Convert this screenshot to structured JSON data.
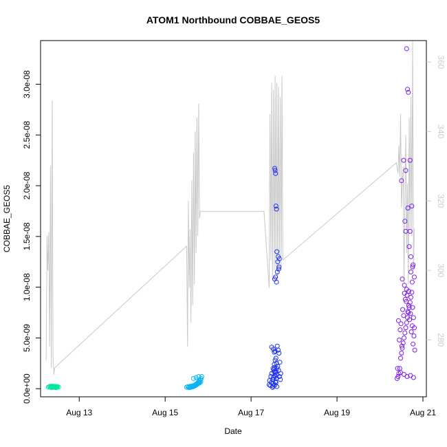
{
  "chart_data": {
    "type": "scatter",
    "title": "ATOM1 Northbound COBBAE_GEOS5",
    "xlabel": "Date",
    "ylabel": "COBBAE_GEOS5",
    "xlim": [
      12.1,
      21.08
    ],
    "ylim": [
      -8e-10,
      3.43e-08
    ],
    "y2lim": [
      263.6,
      366.2
    ],
    "grid": false,
    "legend": "none",
    "x_ticks": [
      {
        "value": 13,
        "label": "Aug 13"
      },
      {
        "value": 15,
        "label": "Aug 15"
      },
      {
        "value": 17,
        "label": "Aug 17"
      },
      {
        "value": 19,
        "label": "Aug 19"
      },
      {
        "value": 21,
        "label": "Aug 21"
      }
    ],
    "y_ticks": [
      {
        "value": 0,
        "label": "0.0e+00"
      },
      {
        "value": 5e-09,
        "label": "5.0e-09"
      },
      {
        "value": 1e-08,
        "label": "1.0e-08"
      },
      {
        "value": 1.5e-08,
        "label": "1.5e-08"
      },
      {
        "value": 2e-08,
        "label": "2.0e-08"
      },
      {
        "value": 2.5e-08,
        "label": "2.5e-08"
      },
      {
        "value": 3e-08,
        "label": "3.0e-08"
      }
    ],
    "y2_ticks": [
      {
        "value": 280,
        "label": "280"
      },
      {
        "value": 300,
        "label": "300"
      },
      {
        "value": 320,
        "label": "320"
      },
      {
        "value": 340,
        "label": "340"
      },
      {
        "value": 360,
        "label": "360"
      }
    ],
    "colors": {
      "line": "#c8c8c8",
      "group1": "#00e5a0",
      "group2": "#0ab4f0",
      "group3": "#1a2ef0",
      "group4": "#7a1af0"
    },
    "line_series": {
      "axis": "right",
      "x": [
        12.23,
        12.25,
        12.27,
        12.29,
        12.31,
        12.33,
        12.35,
        12.37,
        12.39,
        12.41,
        12.43,
        15.5,
        15.52,
        15.54,
        15.56,
        15.58,
        15.6,
        15.62,
        15.64,
        15.66,
        15.68,
        15.7,
        15.72,
        15.74,
        15.76,
        15.78,
        15.8,
        15.82,
        15.84,
        17.3,
        17.42,
        17.44,
        17.46,
        17.48,
        17.5,
        17.52,
        17.54,
        17.56,
        17.58,
        17.6,
        17.62,
        17.64,
        17.66,
        17.68,
        17.7,
        17.72,
        17.74,
        20.38,
        20.42,
        20.44,
        20.46,
        20.48,
        20.5,
        20.52,
        20.54,
        20.56,
        20.58,
        20.6,
        20.62,
        20.64,
        20.66,
        20.68,
        20.7,
        20.72,
        20.74,
        20.76,
        20.78,
        20.8
      ],
      "y": [
        274,
        310,
        300,
        311,
        278,
        330,
        272,
        349,
        275,
        270,
        272,
        307,
        278,
        320,
        295,
        312,
        285,
        326,
        290,
        334,
        296,
        340,
        305,
        344,
        310,
        348,
        315,
        317,
        317,
        317,
        295,
        345,
        303,
        354,
        297,
        352,
        300,
        356,
        301,
        354,
        298,
        353,
        302,
        350,
        300,
        356,
        303,
        331,
        328,
        336,
        327,
        345,
        318,
        325,
        330,
        296,
        322,
        339,
        305,
        325,
        296,
        344,
        312,
        350,
        310,
        366,
        300,
        312
      ]
    },
    "series": [
      {
        "x": [
          12.28,
          12.31,
          12.34,
          12.37,
          12.4,
          12.43,
          12.46,
          12.49,
          12.52,
          12.35,
          12.38,
          12.42,
          12.45,
          12.48,
          12.32,
          12.36,
          12.41,
          12.44,
          12.47
        ],
        "y": [
          1.5e-10,
          2e-10,
          1.8e-10,
          2.2e-10,
          2e-10,
          1.7e-10,
          2.1e-10,
          1.9e-10,
          1.6e-10,
          1e-10,
          1.2e-10,
          1.4e-10,
          1.1e-10,
          1.3e-10,
          2.3e-10,
          2.5e-10,
          2.4e-10,
          2.2e-10,
          2e-10
        ]
      },
      {
        "x": [
          15.5,
          15.53,
          15.56,
          15.59,
          15.62,
          15.65,
          15.68,
          15.7,
          15.72,
          15.74,
          15.76,
          15.78,
          15.8,
          15.82,
          15.84,
          15.55,
          15.6,
          15.64,
          15.69,
          15.73,
          15.77,
          15.81,
          15.58,
          15.63,
          15.67,
          15.71,
          15.75,
          15.79,
          15.83,
          15.66,
          15.72,
          15.78,
          15.85
        ],
        "y": [
          1.5e-10,
          2e-10,
          1.8e-10,
          2.5e-10,
          2.3e-10,
          3e-10,
          2.8e-10,
          4e-10,
          3.5e-10,
          5e-10,
          6e-10,
          7e-10,
          8e-10,
          9e-10,
          1e-09,
          1e-10,
          1.5e-10,
          2e-10,
          3e-10,
          4e-10,
          5e-10,
          6e-10,
          1.2e-10,
          1.6e-10,
          2.2e-10,
          3.2e-10,
          4.5e-10,
          5.5e-10,
          7e-10,
          1e-09,
          1.1e-09,
          1.2e-09,
          1.2e-09
        ]
      },
      {
        "x": [
          17.42,
          17.43,
          17.45,
          17.46,
          17.47,
          17.48,
          17.5,
          17.51,
          17.52,
          17.53,
          17.54,
          17.55,
          17.56,
          17.57,
          17.58,
          17.59,
          17.6,
          17.61,
          17.62,
          17.63,
          17.64,
          17.65,
          17.66,
          17.67,
          17.68,
          17.69,
          17.5,
          17.51,
          17.52,
          17.53,
          17.54,
          17.55,
          17.56,
          17.57,
          17.58,
          17.59,
          17.6,
          17.55,
          17.56,
          17.57,
          17.58,
          17.59,
          17.6,
          17.55,
          17.57,
          17.59,
          17.61,
          17.62,
          17.63,
          17.64,
          17.65,
          17.66,
          17.55,
          17.58,
          17.6,
          17.48,
          17.52,
          17.56
        ],
        "y": [
          4e-10,
          8e-10,
          3e-10,
          1.2e-09,
          6e-10,
          1.5e-09,
          9e-10,
          2e-09,
          1.1e-09,
          1.7e-09,
          2.4e-09,
          1.3e-09,
          2.8e-09,
          1.6e-09,
          3e-09,
          1e-09,
          1.4e-09,
          4.2e-09,
          2.2e-09,
          3.8e-09,
          1.8e-09,
          3.5e-09,
          1.2e-09,
          2.6e-09,
          9e-10,
          1.5e-09,
          1.2e-10,
          2.5e-10,
          5e-10,
          1.9e-09,
          3.6e-09,
          2.1e-09,
          1.2e-09,
          7e-10,
          1.7e-09,
          2.5e-09,
          2e-09,
          2.17e-08,
          2.15e-08,
          2.12e-08,
          1.8e-08,
          1.77e-08,
          1.35e-08,
          1.08e-08,
          1.1e-08,
          1.05e-08,
          1.15e-08,
          1.25e-08,
          1.3e-08,
          1.18e-08,
          1.2e-08,
          1.28e-08,
          3.5e-10,
          6e-10,
          2e-10,
          4.1e-09,
          3.9e-09,
          3.7e-09
        ]
      },
      {
        "x": [
          20.4,
          20.42,
          20.44,
          20.46,
          20.48,
          20.5,
          20.52,
          20.54,
          20.56,
          20.58,
          20.6,
          20.62,
          20.64,
          20.66,
          20.68,
          20.7,
          20.72,
          20.74,
          20.76,
          20.78,
          20.8,
          20.43,
          20.47,
          20.51,
          20.55,
          20.59,
          20.63,
          20.67,
          20.71,
          20.75,
          20.79,
          20.45,
          20.49,
          20.53,
          20.57,
          20.61,
          20.65,
          20.69,
          20.73,
          20.77,
          20.81,
          20.62,
          20.64,
          20.66,
          20.7,
          20.74,
          20.58,
          20.6,
          20.68,
          20.72,
          20.76,
          20.5,
          20.55,
          20.6,
          20.65,
          20.7,
          20.75,
          20.8,
          20.52,
          20.57,
          20.62,
          20.67,
          20.72,
          20.77,
          20.41,
          20.48,
          20.56,
          20.63,
          20.71,
          20.78
        ],
        "y": [
          1e-09,
          1.2e-09,
          1.5e-09,
          2e-09,
          3e-09,
          3.5e-09,
          4e-09,
          4.5e-09,
          5e-09,
          5.5e-09,
          6e-09,
          6.5e-09,
          7e-09,
          7.5e-09,
          8e-09,
          8.5e-09,
          9e-09,
          9.5e-09,
          8e-09,
          7e-09,
          6e-09,
          6.7e-09,
          5.8e-09,
          4.2e-09,
          7.2e-09,
          8.8e-09,
          9.2e-09,
          8.2e-09,
          7.4e-09,
          6.2e-09,
          5.2e-09,
          4.8e-09,
          6.4e-09,
          7.8e-09,
          9.4e-09,
          8.6e-09,
          7.6e-09,
          6.8e-09,
          5.6e-09,
          4.4e-09,
          3.8e-09,
          3.35e-08,
          2.95e-08,
          2.92e-08,
          2.25e-08,
          1.8e-08,
          1.65e-08,
          1.55e-08,
          1.4e-08,
          1.3e-08,
          1.2e-08,
          2.05e-08,
          2.25e-08,
          2.15e-08,
          1.78e-08,
          1.55e-08,
          1.05e-08,
          1.1e-08,
          1.08e-08,
          1.02e-08,
          9.8e-09,
          9.6e-09,
          1.15e-08,
          1.22e-08,
          2e-09,
          1.6e-09,
          1.4e-09,
          1.2e-09,
          1.3e-09,
          1.1e-09
        ]
      }
    ]
  }
}
